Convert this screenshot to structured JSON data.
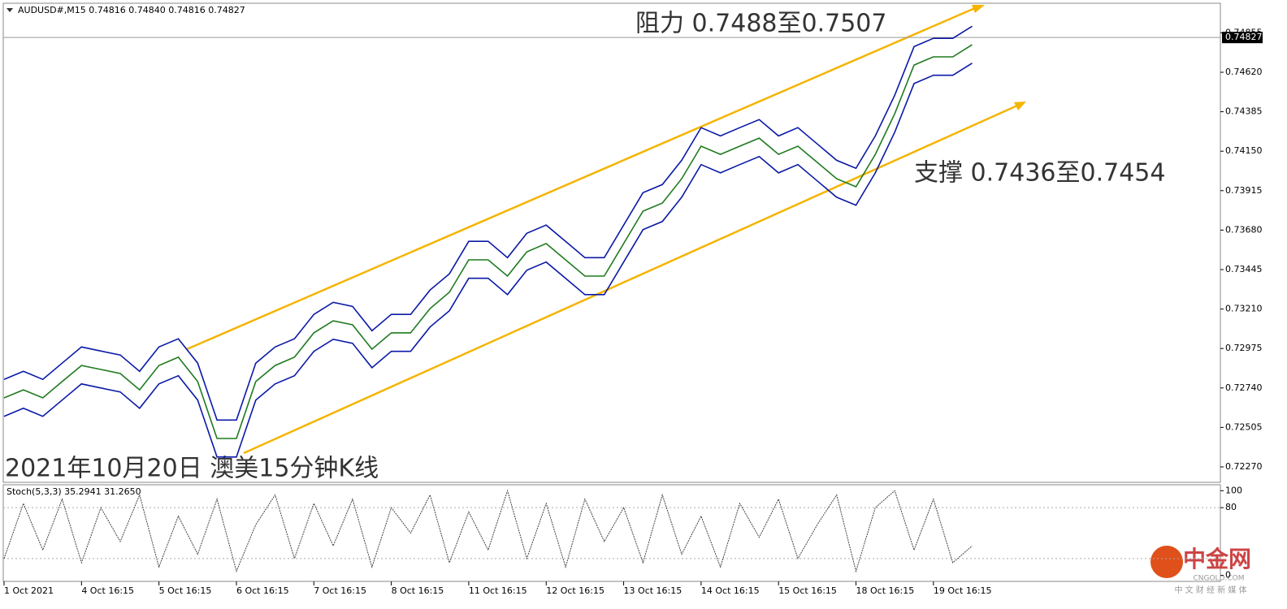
{
  "chart_data": [
    {
      "type": "line",
      "title": "AUDUSD#,M15  0.74816 0.74840 0.74816 0.74827",
      "annotations": [
        "阻力 0.7488至0.7507",
        "支撑 0.7436至0.7454",
        "2021年10月20日 澳美15分钟K线"
      ],
      "categories": [
        "1 Oct 2021",
        null,
        null,
        null,
        "4 Oct 16:15",
        null,
        null,
        null,
        "5 Oct 16:15",
        null,
        null,
        null,
        "6 Oct 16:15",
        null,
        null,
        null,
        "7 Oct 16:15",
        null,
        null,
        null,
        "8 Oct 16:15",
        null,
        null,
        null,
        "11 Oct 16:15",
        null,
        null,
        null,
        "12 Oct 16:15",
        null,
        null,
        null,
        "13 Oct 16:15",
        null,
        null,
        null,
        "14 Oct 16:15",
        null,
        null,
        null,
        "15 Oct 16:15",
        null,
        null,
        null,
        "18 Oct 16:15",
        null,
        null,
        null,
        "19 Oct 16:15",
        null,
        null
      ],
      "series": [
        {
          "color": "#1f7a1f",
          "values": [
            0.72681,
            0.72729,
            0.72681,
            0.72778,
            0.72874,
            0.7285,
            0.72826,
            0.72729,
            0.72874,
            0.72923,
            0.72778,
            0.72439,
            0.72439,
            0.72778,
            0.72874,
            0.72923,
            0.73068,
            0.7314,
            0.73116,
            0.72971,
            0.73068,
            0.73068,
            0.73213,
            0.7331,
            0.73503,
            0.73503,
            0.73406,
            0.73551,
            0.736,
            0.73503,
            0.73406,
            0.73406,
            0.736,
            0.73793,
            0.73841,
            0.73986,
            0.7418,
            0.74131,
            0.7418,
            0.74228,
            0.74131,
            0.7418,
            0.74083,
            0.73986,
            0.73938,
            0.74131,
            0.74373,
            0.74663,
            0.74712,
            0.74712,
            0.74784
          ]
        },
        {
          "color": "#0b1aa6",
          "values": [
            0.72791,
            0.72839,
            0.72791,
            0.72888,
            0.72984,
            0.7296,
            0.72936,
            0.72839,
            0.72984,
            0.73033,
            0.72888,
            0.72549,
            0.72549,
            0.72888,
            0.72984,
            0.73033,
            0.73178,
            0.7325,
            0.73226,
            0.73081,
            0.73178,
            0.73178,
            0.73323,
            0.7342,
            0.73613,
            0.73613,
            0.73516,
            0.73661,
            0.7371,
            0.73613,
            0.73516,
            0.73516,
            0.7371,
            0.73903,
            0.73951,
            0.74096,
            0.7429,
            0.74241,
            0.7429,
            0.74338,
            0.74241,
            0.7429,
            0.74193,
            0.74096,
            0.74048,
            0.74241,
            0.74483,
            0.74773,
            0.74822,
            0.74822,
            0.74894
          ]
        },
        {
          "color": "#0b1aa6",
          "values": [
            0.72571,
            0.72619,
            0.72571,
            0.72668,
            0.72764,
            0.7274,
            0.72716,
            0.72619,
            0.72764,
            0.72813,
            0.72668,
            0.72329,
            0.72329,
            0.72668,
            0.72764,
            0.72813,
            0.72958,
            0.7303,
            0.73006,
            0.72861,
            0.72958,
            0.72958,
            0.73103,
            0.732,
            0.73393,
            0.73393,
            0.73296,
            0.73441,
            0.7349,
            0.73393,
            0.73296,
            0.73296,
            0.7349,
            0.73683,
            0.73731,
            0.73876,
            0.7407,
            0.74021,
            0.7407,
            0.74118,
            0.74021,
            0.7407,
            0.73973,
            0.73876,
            0.73828,
            0.74021,
            0.74263,
            0.74553,
            0.74602,
            0.74602,
            0.74674
          ]
        }
      ],
      "last_price": 0.74827,
      "ylim": [
        0.72178,
        0.75031
      ],
      "yticks": [
        {
          "value": 0.7227,
          "label": "0.72270"
        },
        0.72505,
        {
          "value": 0.7274,
          "label": "0.72740"
        },
        0.72975,
        {
          "value": 0.7321,
          "label": "0.73210"
        },
        0.73445,
        {
          "value": 0.7368,
          "label": "0.73680"
        },
        0.73915,
        {
          "value": 0.7415,
          "label": "0.74150"
        },
        0.74385,
        {
          "value": 0.7462,
          "label": "0.74620"
        },
        0.74855
      ]
    },
    {
      "type": "line",
      "title": "Stoch(5,3,3) 35.2941 31.2650",
      "series": [
        {
          "color": "#444444",
          "values": [
            20,
            85,
            30,
            90,
            15,
            80,
            40,
            95,
            10,
            70,
            25,
            90,
            5,
            60,
            95,
            20,
            85,
            35,
            90,
            10,
            80,
            50,
            95,
            15,
            75,
            30,
            100,
            20,
            85,
            10,
            90,
            40,
            80,
            15,
            95,
            25,
            70,
            10,
            85,
            45,
            90,
            20,
            60,
            95,
            5,
            80,
            100,
            30,
            90,
            15,
            35
          ]
        }
      ],
      "levels": [
        20,
        80
      ],
      "ylim": [
        -7,
        107
      ],
      "yticks": [
        0,
        80,
        100
      ]
    }
  ],
  "watermark": {
    "name": "中金网",
    "domain": "CNGOLD.COM",
    "tagline": "中 文 财 经 新 媒 体"
  }
}
